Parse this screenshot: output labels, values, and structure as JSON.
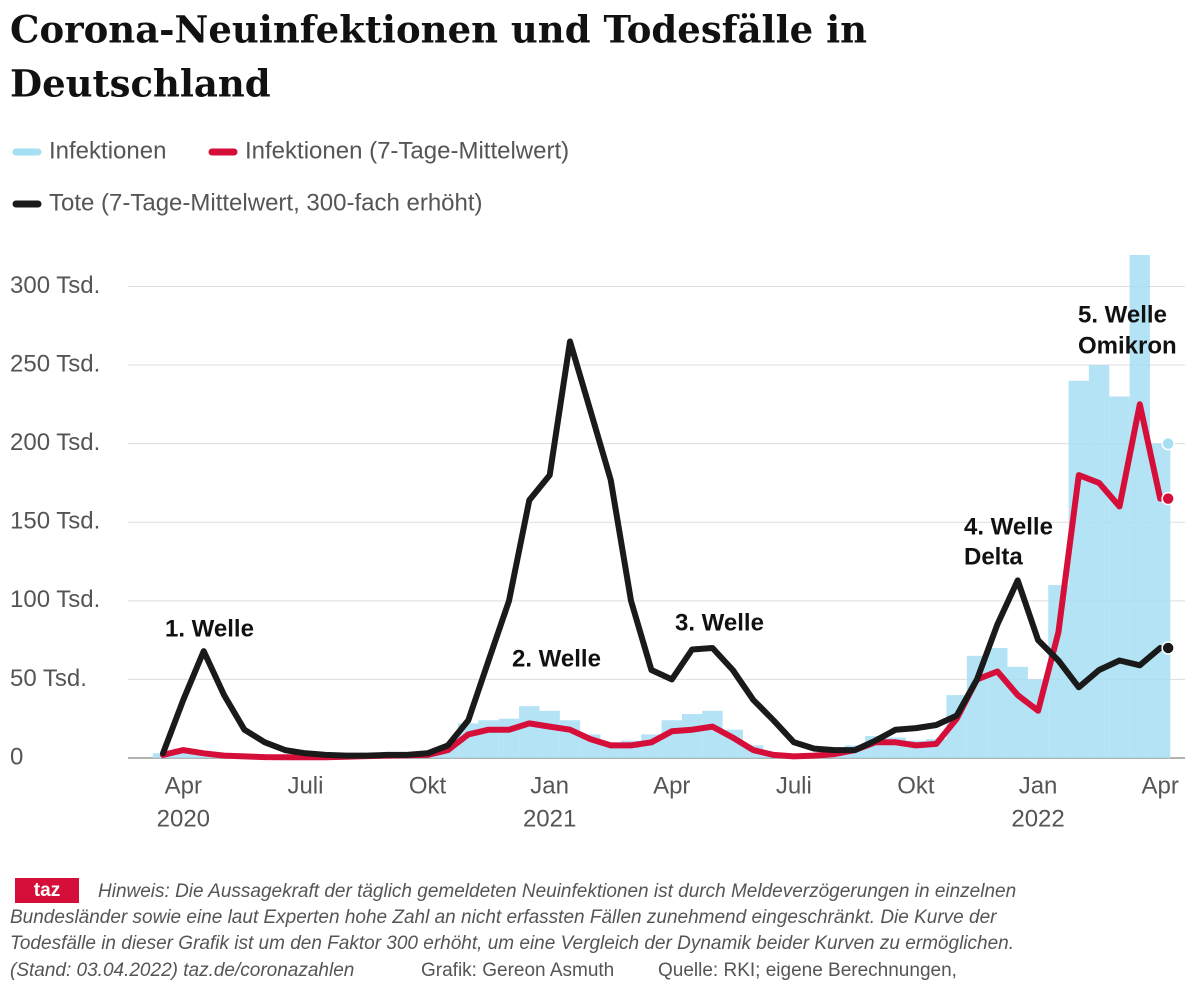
{
  "chart_data": {
    "type": "bar-line",
    "title": [
      "Corona-Neuinfektionen und Todesfälle in",
      "Deutschland"
    ],
    "categories": [
      null,
      "Apr",
      null,
      null,
      null,
      null,
      null,
      "Juli",
      null,
      null,
      null,
      null,
      null,
      "Okt",
      null,
      null,
      null,
      null,
      null,
      "Jan",
      null,
      null,
      null,
      null,
      null,
      "Apr",
      null,
      null,
      null,
      null,
      null,
      "Juli",
      null,
      null,
      null,
      null,
      null,
      "Okt",
      null,
      null,
      null,
      null,
      null,
      "Jan",
      null,
      null,
      null,
      null,
      null,
      "Apr"
    ],
    "year_labels": [
      {
        "value": 1,
        "label": "2020"
      },
      {
        "value": 19,
        "label": "2021"
      },
      {
        "value": 43,
        "label": "2022"
      }
    ],
    "series": [
      {
        "name": "Infektionen",
        "color": "#a6def3",
        "kind": "bar",
        "values": [
          3000,
          6000,
          4000,
          2000,
          1000,
          700,
          600,
          600,
          700,
          1200,
          1800,
          2000,
          2300,
          2500,
          7000,
          22000,
          24000,
          25000,
          33000,
          30000,
          24000,
          15000,
          10000,
          11000,
          15000,
          24000,
          28000,
          30000,
          18000,
          8000,
          3000,
          1500,
          2000,
          4000,
          8000,
          14000,
          13000,
          11000,
          12000,
          40000,
          65000,
          70000,
          58000,
          50000,
          110000,
          240000,
          250000,
          230000,
          320000,
          200000
        ]
      },
      {
        "name": "Infektionen (7-Tage-Mittelwert)",
        "color": "#d50f3a",
        "kind": "line",
        "values": [
          2000,
          5000,
          3000,
          1500,
          1000,
          600,
          500,
          500,
          500,
          800,
          1200,
          1500,
          1800,
          2000,
          5000,
          15000,
          18000,
          18000,
          22000,
          20000,
          18000,
          12000,
          8000,
          8000,
          10000,
          17000,
          18000,
          20000,
          13000,
          5000,
          2000,
          1000,
          1500,
          2500,
          5000,
          10000,
          10000,
          8000,
          9000,
          25000,
          50000,
          55000,
          40000,
          30000,
          80000,
          180000,
          175000,
          160000,
          225000,
          165000
        ]
      },
      {
        "name": "Tote (7-Tage-Mittelwert, 300-fach erhöht)",
        "color": "#1a1a1a",
        "kind": "line",
        "values": [
          3000,
          37000,
          68000,
          40000,
          18000,
          10000,
          5000,
          3000,
          2000,
          1500,
          1500,
          2000,
          2000,
          3000,
          8000,
          24000,
          62000,
          100000,
          164000,
          180000,
          265000,
          221000,
          177000,
          100000,
          56000,
          50000,
          69000,
          70000,
          56000,
          37000,
          24000,
          10000,
          6000,
          5000,
          5000,
          11000,
          18000,
          19000,
          21000,
          27000,
          50000,
          85000,
          113000,
          75000,
          62000,
          45000,
          56000,
          62000,
          59000,
          70000
        ]
      }
    ],
    "ylim": [
      0,
      320000
    ],
    "yticks": [
      {
        "value": 0,
        "label": "0"
      },
      {
        "value": 50000,
        "label": "50 Tsd."
      },
      {
        "value": 100000,
        "label": "100 Tsd."
      },
      {
        "value": 150000,
        "label": "150 Tsd."
      },
      {
        "value": 200000,
        "label": "200 Tsd."
      },
      {
        "value": 250000,
        "label": "250 Tsd."
      },
      {
        "value": 300000,
        "label": "300 Tsd."
      }
    ],
    "grid": true,
    "annotations": [
      "1. Welle",
      "2. Welle",
      "3. Welle",
      [
        "4. Welle",
        "Delta"
      ],
      [
        "5. Welle",
        "Omikron"
      ]
    ]
  },
  "footer": {
    "logo": "taz",
    "note_lines": [
      "Hinweis: Die Aussagekraft der täglich gemeldeten Neuinfektionen ist durch Meldeverzögerungen in einzelnen",
      "Bundesländer sowie eine laut Experten hohe Zahl an nicht erfassten Fällen zunehmend eingeschränkt. Die Kurve der",
      "Todesfälle in dieser Grafik ist um den Faktor 300 erhöht, um eine Vergleich der Dynamik beider Kurven zu ermöglichen."
    ],
    "stand": "(Stand: 03.04.2022) taz.de/coronazahlen",
    "grafik": "Grafik: Gereon Asmuth",
    "quelle": "Quelle: RKI; eigene Berechnungen,"
  }
}
